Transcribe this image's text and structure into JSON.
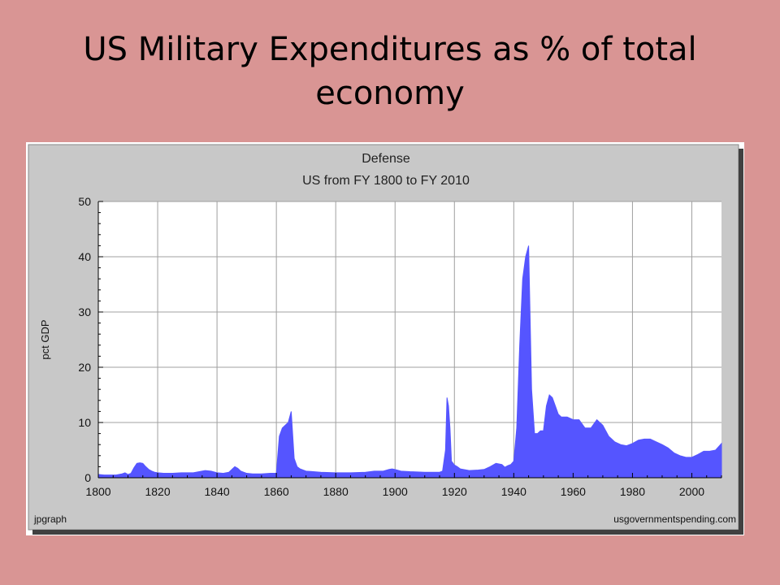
{
  "slide": {
    "title": "US Military Expenditures as % of total economy"
  },
  "chart_data": {
    "type": "area",
    "title": "Defense",
    "subtitle": "US from FY 1800 to FY 2010",
    "xlabel": "",
    "ylabel": "pct GDP",
    "xlim": [
      1800,
      2010
    ],
    "ylim": [
      0,
      50
    ],
    "x_ticks": [
      1800,
      1820,
      1840,
      1860,
      1880,
      1900,
      1920,
      1940,
      1960,
      1980,
      2000
    ],
    "y_ticks": [
      0,
      10,
      20,
      30,
      40,
      50
    ],
    "grid": true,
    "legend": "none",
    "footer_left": "jpgraph",
    "footer_right": "usgovernmentspending.com",
    "colors": {
      "fill": "#5555ff",
      "plot_bg": "#ffffff",
      "panel_bg": "#c8c8c8",
      "grid": "#a0a0a0"
    },
    "series": [
      {
        "x": [
          1800,
          1802,
          1804,
          1806,
          1808,
          1809,
          1810,
          1811,
          1812,
          1813,
          1814,
          1815,
          1816,
          1817,
          1818,
          1819,
          1820,
          1822,
          1825,
          1828,
          1830,
          1832,
          1834,
          1836,
          1838,
          1840,
          1842,
          1844,
          1845,
          1846,
          1847,
          1848,
          1850,
          1852,
          1855,
          1858,
          1860,
          1861,
          1862,
          1863,
          1864,
          1865,
          1866,
          1867,
          1868,
          1869,
          1870,
          1875,
          1880,
          1885,
          1890,
          1893,
          1896,
          1898,
          1899,
          1900,
          1902,
          1905,
          1910,
          1915,
          1916,
          1917,
          1917.5,
          1918,
          1918.5,
          1919,
          1920,
          1921,
          1922,
          1925,
          1928,
          1930,
          1932,
          1934,
          1936,
          1937,
          1938,
          1939,
          1940,
          1941,
          1942,
          1943,
          1944,
          1945,
          1946,
          1947,
          1948,
          1949,
          1950,
          1951,
          1952,
          1953,
          1954,
          1955,
          1956,
          1958,
          1960,
          1962,
          1964,
          1966,
          1968,
          1970,
          1972,
          1974,
          1976,
          1978,
          1980,
          1982,
          1984,
          1986,
          1988,
          1990,
          1992,
          1994,
          1996,
          1998,
          2000,
          2002,
          2004,
          2006,
          2008,
          2010
        ],
        "y": [
          0.6,
          0.5,
          0.5,
          0.5,
          0.7,
          0.9,
          0.6,
          0.8,
          1.8,
          2.6,
          2.7,
          2.6,
          2.0,
          1.5,
          1.2,
          1.0,
          0.9,
          0.8,
          0.8,
          0.9,
          0.9,
          0.9,
          1.1,
          1.3,
          1.2,
          0.9,
          0.8,
          1.0,
          1.5,
          2.0,
          1.7,
          1.2,
          0.8,
          0.7,
          0.7,
          0.8,
          0.8,
          7.5,
          9.0,
          9.5,
          10.0,
          12.0,
          3.5,
          2.0,
          1.6,
          1.4,
          1.2,
          1.0,
          0.9,
          0.9,
          1.0,
          1.2,
          1.2,
          1.5,
          1.6,
          1.5,
          1.2,
          1.1,
          1.0,
          1.0,
          1.2,
          5.0,
          14.5,
          13.0,
          9.0,
          3.0,
          2.3,
          2.0,
          1.6,
          1.3,
          1.4,
          1.5,
          2.0,
          2.6,
          2.4,
          1.9,
          2.2,
          2.4,
          3.0,
          9.0,
          24.0,
          36.0,
          40.0,
          42.0,
          16.0,
          8.0,
          8.0,
          8.5,
          8.5,
          13.0,
          15.0,
          14.5,
          13.0,
          11.5,
          11.0,
          11.0,
          10.5,
          10.5,
          9.0,
          9.0,
          10.5,
          9.5,
          7.5,
          6.5,
          6.0,
          5.8,
          6.2,
          6.8,
          7.0,
          7.0,
          6.5,
          6.0,
          5.4,
          4.5,
          4.0,
          3.7,
          3.7,
          4.2,
          4.8,
          4.8,
          5.0,
          6.2
        ]
      }
    ]
  }
}
